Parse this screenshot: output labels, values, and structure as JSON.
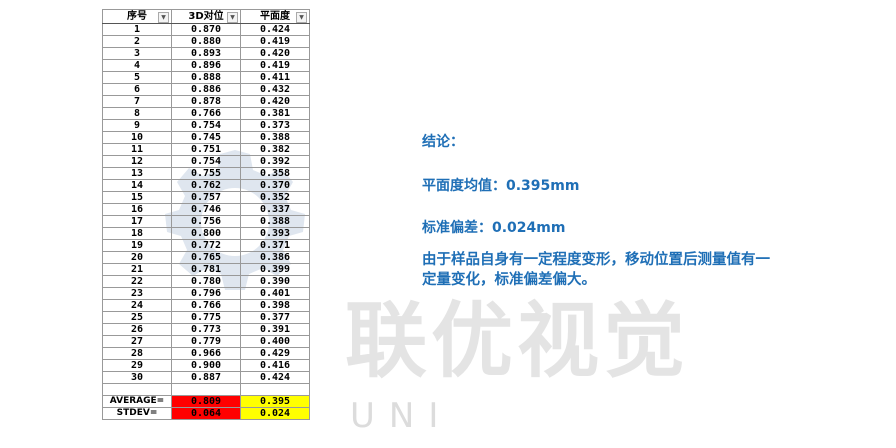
{
  "watermark": {
    "text_cn": "联优视觉",
    "text_en": "UNI"
  },
  "table": {
    "headers": [
      "序号",
      "3D对位",
      "平面度"
    ],
    "rows": [
      [
        "1",
        "0.870",
        "0.424"
      ],
      [
        "2",
        "0.880",
        "0.419"
      ],
      [
        "3",
        "0.893",
        "0.420"
      ],
      [
        "4",
        "0.896",
        "0.419"
      ],
      [
        "5",
        "0.888",
        "0.411"
      ],
      [
        "6",
        "0.886",
        "0.432"
      ],
      [
        "7",
        "0.878",
        "0.420"
      ],
      [
        "8",
        "0.766",
        "0.381"
      ],
      [
        "9",
        "0.754",
        "0.373"
      ],
      [
        "10",
        "0.745",
        "0.388"
      ],
      [
        "11",
        "0.751",
        "0.382"
      ],
      [
        "12",
        "0.754",
        "0.392"
      ],
      [
        "13",
        "0.755",
        "0.358"
      ],
      [
        "14",
        "0.762",
        "0.370"
      ],
      [
        "15",
        "0.757",
        "0.352"
      ],
      [
        "16",
        "0.746",
        "0.337"
      ],
      [
        "17",
        "0.756",
        "0.388"
      ],
      [
        "18",
        "0.800",
        "0.393"
      ],
      [
        "19",
        "0.772",
        "0.371"
      ],
      [
        "20",
        "0.765",
        "0.386"
      ],
      [
        "21",
        "0.781",
        "0.399"
      ],
      [
        "22",
        "0.780",
        "0.390"
      ],
      [
        "23",
        "0.796",
        "0.401"
      ],
      [
        "24",
        "0.766",
        "0.398"
      ],
      [
        "25",
        "0.775",
        "0.377"
      ],
      [
        "26",
        "0.773",
        "0.391"
      ],
      [
        "27",
        "0.779",
        "0.400"
      ],
      [
        "28",
        "0.966",
        "0.429"
      ],
      [
        "29",
        "0.900",
        "0.416"
      ],
      [
        "30",
        "0.887",
        "0.424"
      ]
    ],
    "summary": [
      {
        "label": "AVERAGE=",
        "v1": "0.809",
        "v2": "0.395"
      },
      {
        "label": "STDEV=",
        "v1": "0.064",
        "v2": "0.024"
      }
    ],
    "colors": {
      "col1_summary": "#ff0000",
      "col2_summary": "#ffff00"
    }
  },
  "conclusion": {
    "title": "结论：",
    "flatness_avg": "平面度均值：0.395mm",
    "std_dev": "标准偏差：0.024mm",
    "note": "由于样品自身有一定程度变形，移动位置后测量值有一定量变化，标准偏差偏大。",
    "color": "#1f6fb6"
  }
}
